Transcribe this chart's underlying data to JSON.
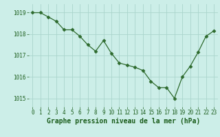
{
  "x": [
    0,
    1,
    2,
    3,
    4,
    5,
    6,
    7,
    8,
    9,
    10,
    11,
    12,
    13,
    14,
    15,
    16,
    17,
    18,
    19,
    20,
    21,
    22,
    23
  ],
  "y": [
    1019.0,
    1019.0,
    1018.8,
    1018.6,
    1018.2,
    1018.2,
    1017.9,
    1017.5,
    1017.2,
    1017.7,
    1017.1,
    1016.65,
    1016.55,
    1016.45,
    1016.3,
    1015.8,
    1015.5,
    1015.5,
    1015.0,
    1016.0,
    1016.5,
    1017.15,
    1017.9,
    1018.15
  ],
  "line_color": "#2d6a2d",
  "marker": "D",
  "marker_size": 2.5,
  "bg_color": "#cceee8",
  "grid_color": "#aad4cc",
  "ylabel_ticks": [
    1015,
    1016,
    1017,
    1018,
    1019
  ],
  "xlabel": "Graphe pression niveau de la mer (hPa)",
  "xlabel_color": "#1a5c1a",
  "xlabel_fontsize": 7,
  "tick_fontsize": 5.5,
  "ylim": [
    1014.6,
    1019.4
  ],
  "xlim": [
    -0.5,
    23.5
  ]
}
